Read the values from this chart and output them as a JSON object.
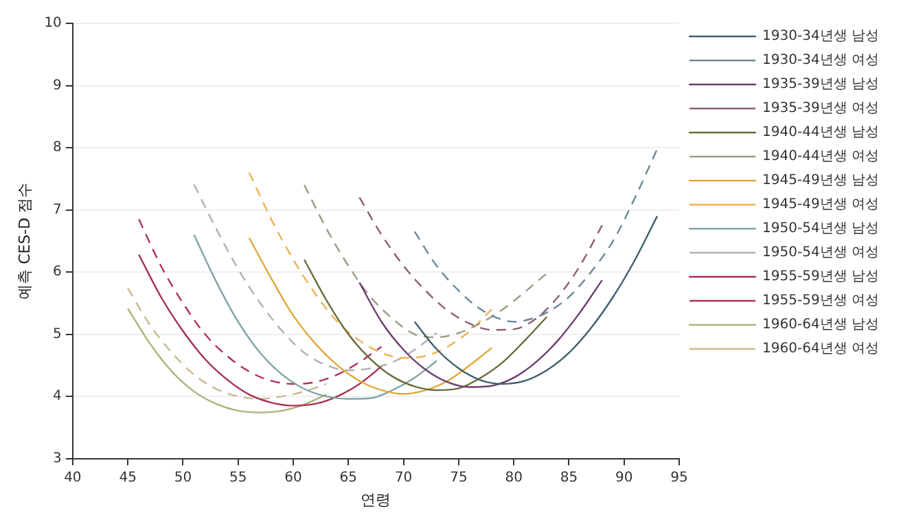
{
  "chart_data": {
    "type": "line",
    "xlabel": "연령",
    "ylabel": "예측 CES-D 점수",
    "xlim": [
      40,
      95
    ],
    "xticks": [
      40,
      45,
      50,
      55,
      60,
      65,
      70,
      75,
      80,
      85,
      90,
      95
    ],
    "ylim": [
      3,
      10
    ],
    "yticks": [
      3,
      4,
      5,
      6,
      7,
      8,
      9,
      10
    ],
    "grid": "y",
    "legend": "right",
    "marker": "none",
    "series": [
      {
        "name": "1930-34년생 남성",
        "color": "#3f5f6e",
        "line_style": "solid",
        "x": [
          71,
          73,
          75,
          77,
          79,
          81,
          83,
          85,
          87,
          89,
          91,
          93
        ],
        "values": [
          5.2,
          4.76,
          4.45,
          4.26,
          4.2,
          4.25,
          4.42,
          4.7,
          5.1,
          5.6,
          6.2,
          6.9
        ]
      },
      {
        "name": "1930-34년생 여성",
        "color": "#6a8796",
        "line_style": "dashed",
        "x": [
          71,
          73,
          75,
          77,
          79,
          80,
          81,
          83,
          85,
          87,
          89,
          91,
          93
        ],
        "values": [
          6.65,
          6.1,
          5.7,
          5.4,
          5.23,
          5.2,
          5.22,
          5.35,
          5.6,
          6.0,
          6.5,
          7.2,
          7.98
        ]
      },
      {
        "name": "1935-39년생 남성",
        "color": "#6b3f6e",
        "line_style": "solid",
        "x": [
          66,
          68,
          70,
          72,
          74,
          76,
          78,
          80,
          82,
          84,
          86,
          88
        ],
        "values": [
          5.83,
          5.2,
          4.75,
          4.43,
          4.23,
          4.15,
          4.17,
          4.3,
          4.55,
          4.9,
          5.35,
          5.87
        ]
      },
      {
        "name": "1935-39년생 여성",
        "color": "#8f5c75",
        "line_style": "dashed",
        "x": [
          66,
          68,
          70,
          72,
          74,
          76,
          78,
          80,
          82,
          84,
          86,
          88
        ],
        "values": [
          7.2,
          6.6,
          6.1,
          5.7,
          5.38,
          5.17,
          5.07,
          5.08,
          5.25,
          5.6,
          6.1,
          6.75
        ]
      },
      {
        "name": "1940-44년생 남성",
        "color": "#6b6b3a",
        "line_style": "solid",
        "x": [
          61,
          63,
          65,
          67,
          69,
          71,
          73,
          75,
          77,
          79,
          81,
          83
        ],
        "values": [
          6.2,
          5.55,
          5.0,
          4.6,
          4.32,
          4.16,
          4.1,
          4.13,
          4.3,
          4.55,
          4.9,
          5.28
        ]
      },
      {
        "name": "1940-44년생 여성",
        "color": "#9a9a80",
        "line_style": "dashed",
        "x": [
          61,
          63,
          65,
          67,
          69,
          71,
          73,
          75,
          77,
          79,
          81,
          83
        ],
        "values": [
          7.4,
          6.7,
          6.1,
          5.6,
          5.25,
          5.0,
          4.95,
          5.02,
          5.18,
          5.4,
          5.68,
          5.98
        ]
      },
      {
        "name": "1945-49년생 남성",
        "color": "#e0a83a",
        "line_style": "solid",
        "x": [
          56,
          58,
          60,
          62,
          64,
          66,
          68,
          70,
          72,
          74,
          76,
          78
        ],
        "values": [
          6.55,
          5.9,
          5.3,
          4.85,
          4.5,
          4.25,
          4.1,
          4.04,
          4.1,
          4.25,
          4.5,
          4.78
        ]
      },
      {
        "name": "1945-49년생 여성",
        "color": "#f0b050",
        "line_style": "dashed",
        "x": [
          56,
          58,
          60,
          62,
          64,
          66,
          68,
          70,
          72,
          74,
          76,
          78
        ],
        "values": [
          7.6,
          6.85,
          6.2,
          5.65,
          5.2,
          4.9,
          4.7,
          4.62,
          4.65,
          4.8,
          5.05,
          5.4
        ]
      },
      {
        "name": "1950-54년생 남성",
        "color": "#7fa3a3",
        "line_style": "solid",
        "x": [
          51,
          53,
          55,
          57,
          59,
          61,
          63,
          65,
          67,
          69,
          71,
          73
        ],
        "values": [
          6.6,
          5.85,
          5.2,
          4.7,
          4.35,
          4.12,
          4.0,
          3.96,
          3.97,
          4.1,
          4.3,
          4.57
        ]
      },
      {
        "name": "1950-54년생 여성",
        "color": "#b0b0b0",
        "line_style": "dashed",
        "x": [
          51,
          53,
          55,
          57,
          59,
          61,
          63,
          65,
          67,
          69,
          71,
          73
        ],
        "values": [
          7.41,
          6.7,
          6.05,
          5.5,
          5.05,
          4.7,
          4.5,
          4.42,
          4.45,
          4.55,
          4.75,
          5.02
        ]
      },
      {
        "name": "1955-59년생 남성",
        "color": "#a3304f",
        "line_style": "solid",
        "x": [
          46,
          48,
          50,
          52,
          54,
          56,
          58,
          60,
          62,
          64,
          66,
          68
        ],
        "values": [
          6.28,
          5.6,
          5.05,
          4.6,
          4.27,
          4.03,
          3.9,
          3.85,
          3.88,
          4.0,
          4.2,
          4.48
        ]
      },
      {
        "name": "1955-59년생 여성",
        "color": "#b0305a",
        "line_style": "dashed",
        "x": [
          46,
          48,
          50,
          52,
          54,
          56,
          58,
          60,
          62,
          64,
          66,
          68
        ],
        "values": [
          6.85,
          6.1,
          5.5,
          5.0,
          4.65,
          4.4,
          4.25,
          4.2,
          4.23,
          4.35,
          4.55,
          4.8
        ]
      },
      {
        "name": "1960-64년생 남성",
        "color": "#b0b07a",
        "line_style": "solid",
        "x": [
          45,
          47,
          49,
          51,
          53,
          55,
          57,
          59,
          61,
          63
        ],
        "values": [
          5.41,
          4.85,
          4.4,
          4.08,
          3.88,
          3.77,
          3.74,
          3.77,
          3.87,
          4.03
        ]
      },
      {
        "name": "1960-64년생 여성",
        "color": "#c8b890",
        "line_style": "dashed",
        "x": [
          45,
          47,
          49,
          51,
          53,
          55,
          57,
          59,
          61,
          63
        ],
        "values": [
          5.74,
          5.15,
          4.7,
          4.35,
          4.12,
          4.0,
          3.96,
          4.0,
          4.08,
          4.2
        ]
      }
    ]
  }
}
